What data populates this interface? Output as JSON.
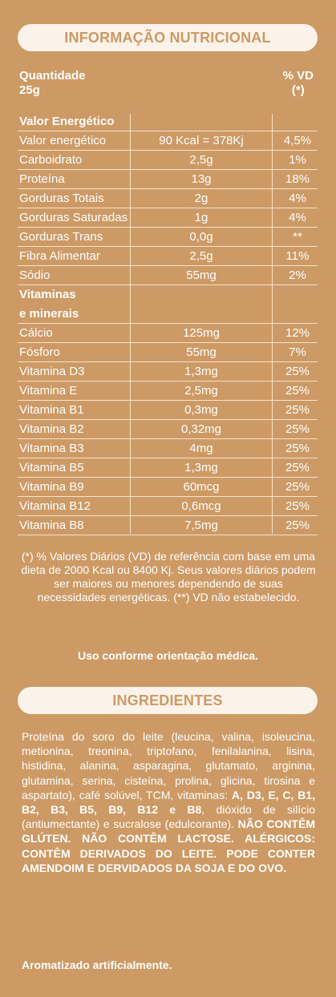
{
  "nutrition": {
    "title": "INFORMAÇÃO NUTRICIONAL",
    "header_left_1": "Quantidade",
    "header_left_2": "25g",
    "header_right_1": "% VD",
    "header_right_2": "(*)",
    "rows": [
      {
        "name": "Valor Energético",
        "amount": "",
        "vd": "",
        "bold": true
      },
      {
        "name": "Valor energético",
        "amount": "90 Kcal = 378Kj",
        "vd": "4,5%"
      },
      {
        "name": "Carboidrato",
        "amount": "2,5g",
        "vd": "1%"
      },
      {
        "name": "Proteína",
        "amount": "13g",
        "vd": "18%"
      },
      {
        "name": "Gorduras Totais",
        "amount": "2g",
        "vd": "4%"
      },
      {
        "name": "Gorduras Saturadas",
        "amount": "1g",
        "vd": "4%"
      },
      {
        "name": "Gorduras Trans",
        "amount": "0,0g",
        "vd": "**"
      },
      {
        "name": "Fibra Alimentar",
        "amount": "2,5g",
        "vd": "11%"
      },
      {
        "name": "Sódio",
        "amount": "55mg",
        "vd": "2%"
      },
      {
        "name": "Vitaminas",
        "amount": "",
        "vd": "",
        "bold": true
      },
      {
        "name": "e minerais",
        "amount": "",
        "vd": "",
        "bold": true
      },
      {
        "name": "Cálcio",
        "amount": "125mg",
        "vd": "12%"
      },
      {
        "name": "Fósforo",
        "amount": "55mg",
        "vd": "7%"
      },
      {
        "name": "Vitamina D3",
        "amount": "1,3mg",
        "vd": "25%"
      },
      {
        "name": "Vitamina E",
        "amount": "2,5mg",
        "vd": "25%"
      },
      {
        "name": "Vitamina B1",
        "amount": "0,3mg",
        "vd": "25%"
      },
      {
        "name": "Vitamina B2",
        "amount": "0,32mg",
        "vd": "25%"
      },
      {
        "name": "Vitamina B3",
        "amount": "4mg",
        "vd": "25%"
      },
      {
        "name": "Vitamina B5",
        "amount": "1,3mg",
        "vd": "25%"
      },
      {
        "name": "Vitamina B9",
        "amount": "60mcg",
        "vd": "25%"
      },
      {
        "name": "Vitamina B12",
        "amount": "0,6mcg",
        "vd": "25%"
      },
      {
        "name": "Vitamina B8",
        "amount": "7,5mg",
        "vd": "25%"
      }
    ],
    "footnote": "(*) % Valores Diários (VD) de referência com base em uma dieta de 2000 Kcal ou 8400 Kj. Seus valores diários podem ser maiores ou menores dependendo de suas necessidades energéticas. (**) VD não estabelecido.",
    "usage": "Uso conforme orientação médica."
  },
  "ingredients": {
    "title": "INGREDIENTES",
    "text_1": "Proteína do soro do leite (leucina, valina, isoleucina, metionina, treonina, triptofano, fenilalanina, lisina, histidina, alanina, asparagina, glutamato, arginina, glutamina, serina, cisteína, prolina, glicina, tirosina e aspartato), café solúvel, TCM, vitaminas: ",
    "vitamins_bold": "A, D3, E, C, B1, B2, B3, B5, B9, B12 e B8",
    "text_2": ", dióxido de silício (antiumectante) e sucralose (edulcorante). ",
    "warning": "NÃO CONTÊM GLÚTEN. NÃO CONTÊM LACTOSE. ALÉRGICOS: CONTÊM DERIVADOS DO LEITE. PODE CONTER AMENDOIM E DERVIDADOS DA SOJA E DO OVO.",
    "aroma": "Aromatizado artificialmente."
  },
  "colors": {
    "background": "#cd9a66",
    "pill": "#fbf3ea",
    "text": "#ffffff"
  }
}
